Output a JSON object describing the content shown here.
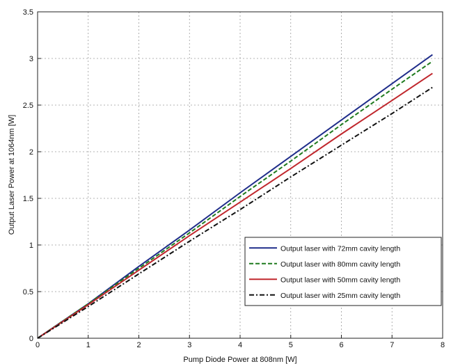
{
  "chart_data": {
    "type": "line",
    "title": "",
    "xlabel": "Pump Diode Power at 808nm [W]",
    "ylabel": "Output Laser Power at 1064nm [W]",
    "xlim": [
      0,
      8
    ],
    "ylim": [
      0,
      3.5
    ],
    "xticks": [
      0,
      1,
      2,
      3,
      4,
      5,
      6,
      7,
      8
    ],
    "yticks": [
      0,
      0.5,
      1,
      1.5,
      2,
      2.5,
      3,
      3.5
    ],
    "xtick_labels": [
      "0",
      "1",
      "2",
      "3",
      "4",
      "5",
      "6",
      "7",
      "8"
    ],
    "ytick_labels": [
      "0",
      "0.5",
      "1",
      "1.5",
      "2",
      "2.5",
      "3",
      "3.5"
    ],
    "grid": true,
    "legend_position": "bottom-right",
    "series": [
      {
        "name": "Output laser with 72mm cavity length",
        "color": "#1f2d8a",
        "dash": "solid",
        "x": [
          0,
          1,
          2,
          3,
          4,
          5,
          6,
          7,
          7.8
        ],
        "y": [
          0,
          0.37,
          0.77,
          1.16,
          1.56,
          1.95,
          2.34,
          2.73,
          3.04
        ]
      },
      {
        "name": "Output laser with 80mm cavity length",
        "color": "#1e7a1e",
        "dash": "dashed",
        "x": [
          0,
          1,
          2,
          3,
          4,
          5,
          6,
          7,
          7.8
        ],
        "y": [
          0,
          0.37,
          0.75,
          1.13,
          1.52,
          1.9,
          2.29,
          2.67,
          2.97
        ]
      },
      {
        "name": "Output laser with 50mm cavity length",
        "color": "#c0272d",
        "dash": "solid",
        "x": [
          0,
          1,
          2,
          3,
          4,
          5,
          6,
          7,
          7.8
        ],
        "y": [
          0,
          0.36,
          0.73,
          1.1,
          1.46,
          1.82,
          2.19,
          2.55,
          2.84
        ]
      },
      {
        "name": "Output laser with 25mm cavity length",
        "color": "#111111",
        "dash": "dashdot",
        "x": [
          0,
          1,
          2,
          3,
          4,
          5,
          6,
          7,
          7.8
        ],
        "y": [
          0,
          0.34,
          0.69,
          1.04,
          1.38,
          1.73,
          2.07,
          2.41,
          2.69
        ]
      }
    ]
  }
}
